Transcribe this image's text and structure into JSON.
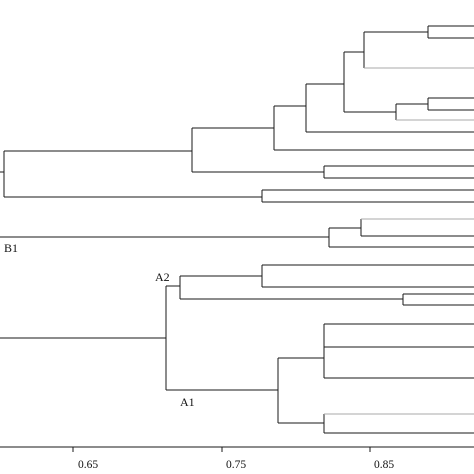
{
  "dendrogram": {
    "axis": {
      "ticks": [
        "0.65",
        "0.75",
        "0.85"
      ]
    },
    "cluster_labels": {
      "b1": "B1",
      "a1": "A1",
      "a2": "A2"
    }
  }
}
